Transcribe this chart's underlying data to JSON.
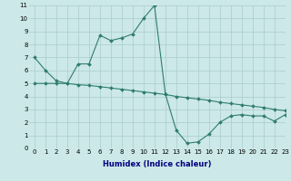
{
  "xlabel": "Humidex (Indice chaleur)",
  "line1_x": [
    0,
    1,
    2,
    3,
    4,
    5,
    6,
    7,
    8,
    9,
    10,
    11,
    12,
    13,
    14,
    15,
    16,
    17,
    18,
    19,
    20,
    21,
    22,
    23
  ],
  "line1_y": [
    7.0,
    6.0,
    5.2,
    5.0,
    6.5,
    6.5,
    8.7,
    8.3,
    8.5,
    8.8,
    10.0,
    11.0,
    4.2,
    1.4,
    0.4,
    0.5,
    1.1,
    2.0,
    2.5,
    2.6,
    2.5,
    2.5,
    2.1,
    2.6
  ],
  "line2_x": [
    0,
    1,
    2,
    3,
    4,
    5,
    6,
    7,
    8,
    9,
    10,
    11,
    12,
    13,
    14,
    15,
    16,
    17,
    18,
    19,
    20,
    21,
    22,
    23
  ],
  "line2_y": [
    5.0,
    5.0,
    5.0,
    5.0,
    4.9,
    4.85,
    4.75,
    4.65,
    4.55,
    4.45,
    4.35,
    4.25,
    4.15,
    4.0,
    3.9,
    3.8,
    3.7,
    3.55,
    3.45,
    3.35,
    3.25,
    3.15,
    3.0,
    2.9
  ],
  "line_color": "#2e7d6e",
  "bg_color": "#cce8e8",
  "grid_color": "#aacccc",
  "xlim": [
    -0.5,
    23
  ],
  "ylim": [
    0,
    11
  ],
  "xticks": [
    0,
    1,
    2,
    3,
    4,
    5,
    6,
    7,
    8,
    9,
    10,
    11,
    12,
    13,
    14,
    15,
    16,
    17,
    18,
    19,
    20,
    21,
    22,
    23
  ],
  "yticks": [
    0,
    1,
    2,
    3,
    4,
    5,
    6,
    7,
    8,
    9,
    10,
    11
  ],
  "xlabel_color": "#000080",
  "tick_fontsize": 5,
  "xlabel_fontsize": 6
}
